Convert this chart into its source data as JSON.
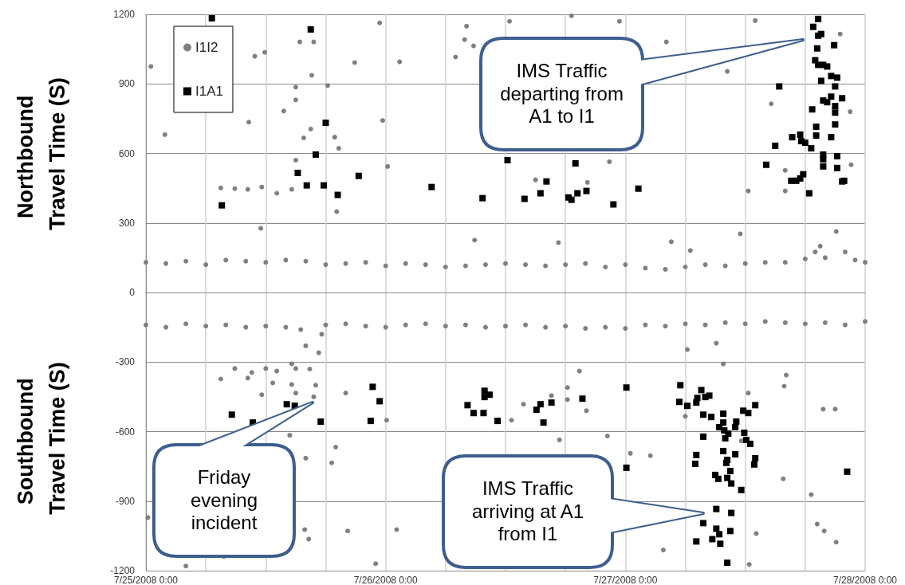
{
  "chart_data": {
    "type": "scatter",
    "ylabel": "Northbound Travel Time (S)",
    "annotations": [
      "Southbound Travel Time (S)",
      "IMS Traffic departing from A1 to I1",
      "Friday evening incident",
      "IMS Traffic arriving at A1 from I1"
    ],
    "xlim": [
      "2008-07-25T00:00",
      "2008-07-28T00:00"
    ],
    "xticks": [
      {
        "value": "2008-07-25T00:00",
        "label": "7/25/2008 0:00"
      },
      {
        "value": "2008-07-25T06:00",
        "label": null
      },
      {
        "value": "2008-07-25T12:00",
        "label": null
      },
      {
        "value": "2008-07-25T18:00",
        "label": null
      },
      {
        "value": "2008-07-26T00:00",
        "label": "7/26/2008 0:00"
      },
      {
        "value": "2008-07-26T06:00",
        "label": null
      },
      {
        "value": "2008-07-26T12:00",
        "label": null
      },
      {
        "value": "2008-07-26T18:00",
        "label": null
      },
      {
        "value": "2008-07-27T00:00",
        "label": "7/27/2008 0:00"
      },
      {
        "value": "2008-07-27T06:00",
        "label": null
      },
      {
        "value": "2008-07-27T12:00",
        "label": null
      },
      {
        "value": "2008-07-27T18:00",
        "label": null
      },
      {
        "value": "2008-07-28T00:00",
        "label": "7/28/2008 0:00"
      }
    ],
    "ylim": [
      -1200,
      1200
    ],
    "yticks": [
      -1200,
      -900,
      -600,
      -300,
      0,
      300,
      600,
      900,
      1200
    ],
    "grid": true,
    "legend": "top left",
    "series": [
      {
        "name": "I1I2",
        "color": "#808080",
        "marker": "circle",
        "x": [
          "2008-07-25T00:00",
          "2008-07-25T02:00",
          "2008-07-25T04:00",
          "2008-07-25T06:00",
          "2008-07-25T08:00",
          "2008-07-25T10:00",
          "2008-07-25T12:00",
          "2008-07-25T14:00",
          "2008-07-25T16:00",
          "2008-07-25T18:00",
          "2008-07-25T20:00",
          "2008-07-25T22:00",
          "2008-07-26T00:00",
          "2008-07-26T02:00",
          "2008-07-26T04:00",
          "2008-07-26T06:00",
          "2008-07-26T08:00",
          "2008-07-26T10:00",
          "2008-07-26T12:00",
          "2008-07-26T14:00",
          "2008-07-26T16:00",
          "2008-07-26T18:00",
          "2008-07-26T20:00",
          "2008-07-26T22:00",
          "2008-07-27T00:00",
          "2008-07-27T02:00",
          "2008-07-27T04:00",
          "2008-07-27T06:00",
          "2008-07-27T08:00",
          "2008-07-27T10:00",
          "2008-07-27T12:00",
          "2008-07-27T14:00",
          "2008-07-27T16:00",
          "2008-07-27T18:00",
          "2008-07-27T19:00",
          "2008-07-27T19:30",
          "2008-07-27T20:00",
          "2008-07-27T22:00",
          "2008-07-27T23:00",
          "2008-07-28T00:00",
          "2008-07-25T00:00",
          "2008-07-25T02:00",
          "2008-07-25T04:00",
          "2008-07-25T06:00",
          "2008-07-25T08:00",
          "2008-07-25T10:00",
          "2008-07-25T12:00",
          "2008-07-25T14:00",
          "2008-07-25T15:30",
          "2008-07-25T16:00",
          "2008-07-25T16:24",
          "2008-07-25T16:48",
          "2008-07-25T17:00",
          "2008-07-25T17:18",
          "2008-07-25T17:36",
          "2008-07-25T18:00",
          "2008-07-25T20:00",
          "2008-07-25T22:00",
          "2008-07-26T00:00",
          "2008-07-26T02:00",
          "2008-07-26T04:00",
          "2008-07-26T06:00",
          "2008-07-26T08:00",
          "2008-07-26T10:00",
          "2008-07-26T12:00",
          "2008-07-26T14:00",
          "2008-07-26T16:00",
          "2008-07-26T18:00",
          "2008-07-26T20:00",
          "2008-07-26T22:00",
          "2008-07-27T00:00",
          "2008-07-27T02:00",
          "2008-07-27T04:00",
          "2008-07-27T06:00",
          "2008-07-27T08:00",
          "2008-07-27T10:00",
          "2008-07-27T12:00",
          "2008-07-27T14:00",
          "2008-07-27T16:00",
          "2008-07-27T18:00",
          "2008-07-27T20:00",
          "2008-07-27T22:00",
          "2008-07-28T00:00",
          "2008-07-25T00:30",
          "2008-07-25T01:54",
          "2008-07-25T07:30",
          "2008-07-25T08:54",
          "2008-07-25T10:12",
          "2008-07-25T10:18",
          "2008-07-25T10:54",
          "2008-07-25T11:36",
          "2008-07-25T11:54",
          "2008-07-25T11:30",
          "2008-07-25T13:06",
          "2008-07-25T13:48",
          "2008-07-25T14:36",
          "2008-07-25T15:00",
          "2008-07-25T15:00",
          "2008-07-25T15:24",
          "2008-07-25T16:48",
          "2008-07-25T16:36",
          "2008-07-25T16:30",
          "2008-07-25T15:48",
          "2008-07-25T15:00",
          "2008-07-25T18:12",
          "2008-07-25T18:54",
          "2008-07-25T19:18",
          "2008-07-25T19:06",
          "2008-07-25T20:54",
          "2008-07-25T23:24",
          "2008-07-25T23:42",
          "2008-07-26T00:12",
          "2008-07-26T01:24",
          "2008-07-26T07:00",
          "2008-07-26T07:54",
          "2008-07-26T08:06",
          "2008-07-26T08:48",
          "2008-07-26T08:54",
          "2008-07-26T12:24",
          "2008-07-26T18:36",
          "2008-07-26T23:24",
          "2008-07-27T04:06",
          "2008-07-27T10:12",
          "2008-07-27T13:00",
          "2008-07-27T21:30",
          "2008-07-27T22:30",
          "2008-07-27T22:36",
          "2008-07-26T22:24",
          "2008-07-26T15:00",
          "2008-07-26T20:12",
          "2008-07-27T14:36",
          "2008-07-27T16:00",
          "2008-07-27T16:00",
          "2008-07-27T12:18",
          "2008-07-27T11:30",
          "2008-07-27T06:30",
          "2008-07-27T04:36",
          "2008-07-26T17:18",
          "2008-07-27T21:06",
          "2008-07-25T08:54",
          "2008-07-25T07:30",
          "2008-07-25T10:12",
          "2008-07-25T10:36",
          "2008-07-25T11:36",
          "2008-07-25T12:00",
          "2008-07-25T13:06",
          "2008-07-25T12:42",
          "2008-07-25T14:36",
          "2008-07-25T15:00",
          "2008-07-25T14:36",
          "2008-07-25T15:00",
          "2008-07-25T14:24",
          "2008-07-25T16:00",
          "2008-07-25T19:00",
          "2008-07-25T18:36",
          "2008-07-25T20:00",
          "2008-07-26T00:06",
          "2008-07-25T00:12",
          "2008-07-25T15:54",
          "2008-07-25T16:18",
          "2008-07-25T20:12",
          "2008-07-26T01:06",
          "2008-07-25T07:48",
          "2008-07-25T04:00",
          "2008-07-25T23:00",
          "2008-07-27T06:12",
          "2008-07-27T09:48",
          "2008-07-27T09:06",
          "2008-07-26T19:24",
          "2008-07-26T18:12",
          "2008-07-26T18:12",
          "2008-07-26T13:48",
          "2008-07-26T12:36",
          "2008-07-26T16:36",
          "2008-07-26T20:06",
          "2008-07-26T22:12",
          "2008-07-26T17:24",
          "2008-07-27T00:30",
          "2008-07-27T02:30",
          "2008-07-27T06:00",
          "2008-07-27T12:18",
          "2008-07-27T11:36",
          "2008-07-27T16:06",
          "2008-07-27T15:54",
          "2008-07-27T19:48",
          "2008-07-27T21:00",
          "2008-07-27T15:48",
          "2008-07-27T18:36",
          "2008-07-27T19:12",
          "2008-07-27T19:54",
          "2008-07-27T21:06",
          "2008-07-27T13:06",
          "2008-07-27T12:24",
          "2008-07-27T03:48"
        ],
        "values": [
          130,
          125,
          135,
          120,
          140,
          135,
          130,
          140,
          135,
          120,
          125,
          130,
          115,
          125,
          120,
          110,
          115,
          120,
          125,
          120,
          115,
          120,
          125,
          110,
          120,
          105,
          100,
          110,
          120,
          115,
          125,
          130,
          130,
          145,
          175,
          200,
          150,
          175,
          140,
          130,
          -140,
          -150,
          -135,
          -145,
          -140,
          -150,
          -145,
          -150,
          -160,
          -230,
          -330,
          -450,
          -400,
          -260,
          -180,
          -140,
          -135,
          -145,
          -150,
          -140,
          -135,
          -145,
          -140,
          -150,
          -145,
          -140,
          -150,
          -145,
          -155,
          -150,
          -155,
          -140,
          -145,
          -135,
          -140,
          -130,
          -135,
          -125,
          -130,
          -135,
          -130,
          -140,
          -125,
          975,
          681,
          451,
          448,
          445,
          735,
          1019,
          455,
          1036,
          277,
          428,
          783,
          445,
          886,
          831,
          1081,
          1081,
          937,
          705,
          667,
          571,
          893,
          670,
          622,
          349,
          992,
          1163,
          742,
          544,
          995,
          1016,
          1091,
          1149,
          1064,
          226,
          1170,
          1194,
          1170,
          1081,
          954,
          1173,
          1115,
          780,
          551,
          564,
          486,
          475,
          814,
          527,
          438,
          438,
          253,
          181,
          219,
          215,
          263,
          -328,
          -373,
          -369,
          -345,
          -441,
          -328,
          -339,
          -390,
          -308,
          -328,
          -397,
          -434,
          -616,
          -715,
          -667,
          -735,
          -434,
          -551,
          -971,
          -1023,
          -1064,
          -1029,
          -1023,
          -1139,
          -1180,
          -1170,
          -246,
          -308,
          -219,
          -339,
          -410,
          -462,
          -482,
          -551,
          -445,
          -510,
          -619,
          -636,
          -694,
          -704,
          -534,
          -434,
          -640,
          -356,
          -404,
          -503,
          -503,
          -804,
          -872,
          -999,
          -1029,
          -1077,
          -1040,
          -1173,
          -1111
        ]
      },
      {
        "name": "I1A1",
        "color": "#000000",
        "marker": "square",
        "x": [
          "2008-07-25T06:36",
          "2008-07-25T07:36",
          "2008-07-25T16:30",
          "2008-07-25T15:12",
          "2008-07-25T16:06",
          "2008-07-25T17:00",
          "2008-07-25T18:00",
          "2008-07-25T17:48",
          "2008-07-25T19:12",
          "2008-07-25T21:18",
          "2008-07-26T04:36",
          "2008-07-26T09:42",
          "2008-07-26T12:12",
          "2008-07-26T13:54",
          "2008-07-26T15:30",
          "2008-07-26T16:06",
          "2008-07-26T18:18",
          "2008-07-26T18:36",
          "2008-07-26T19:00",
          "2008-07-26T19:12",
          "2008-07-26T20:06",
          "2008-07-26T22:48",
          "2008-07-27T01:18",
          "2008-07-27T15:24",
          "2008-07-27T14:06",
          "2008-07-27T15:00",
          "2008-07-27T16:42",
          "2008-07-27T17:30",
          "2008-07-27T17:36",
          "2008-07-27T18:00",
          "2008-07-27T18:36",
          "2008-07-27T16:36",
          "2008-07-27T17:06",
          "2008-07-27T17:30",
          "2008-07-27T17:48",
          "2008-07-27T18:24",
          "2008-07-27T19:18",
          "2008-07-27T18:48",
          "2008-07-27T19:18",
          "2008-07-27T19:36",
          "2008-07-27T20:54",
          "2008-07-27T19:12",
          "2008-07-27T19:00",
          "2008-07-27T19:18",
          "2008-07-27T19:48",
          "2008-07-27T20:12",
          "2008-07-27T20:36",
          "2008-07-27T21:12",
          "2008-07-27T19:36",
          "2008-07-27T21:00",
          "2008-07-27T19:48",
          "2008-07-27T20:12",
          "2008-07-27T20:36",
          "2008-07-27T21:00",
          "2008-07-27T21:42",
          "2008-07-27T21:00",
          "2008-07-27T18:42",
          "2008-07-27T19:06",
          "2008-07-27T21:00",
          "2008-07-27T19:06",
          "2008-07-27T20:36",
          "2008-07-27T19:48",
          "2008-07-27T19:48",
          "2008-07-27T19:48",
          "2008-07-27T21:12",
          "2008-07-27T21:12",
          "2008-07-27T21:42",
          "2008-07-27T21:54",
          "2008-07-25T08:36",
          "2008-07-25T10:42",
          "2008-07-25T14:06",
          "2008-07-25T14:54",
          "2008-07-25T17:30",
          "2008-07-25T22:30",
          "2008-07-25T22:42",
          "2008-07-25T23:24",
          "2008-07-26T08:12",
          "2008-07-26T08:48",
          "2008-07-26T09:48",
          "2008-07-26T09:54",
          "2008-07-26T10:24",
          "2008-07-26T09:54",
          "2008-07-26T11:12",
          "2008-07-26T15:06",
          "2008-07-26T15:30",
          "2008-07-26T16:36",
          "2008-07-26T15:48",
          "2008-07-26T19:42",
          "2008-07-27T00:06",
          "2008-07-27T00:06",
          "2008-07-27T05:30",
          "2008-07-27T05:24",
          "2008-07-27T06:12",
          "2008-07-27T07:06",
          "2008-07-27T07:12",
          "2008-07-27T07:36",
          "2008-07-27T08:00",
          "2008-07-27T08:24",
          "2008-07-27T07:48",
          "2008-07-27T08:36",
          "2008-07-27T09:48",
          "2008-07-27T09:48",
          "2008-07-27T09:24",
          "2008-07-27T09:54",
          "2008-07-27T10:18",
          "2008-07-27T10:00",
          "2008-07-27T11:06",
          "2008-07-27T11:00",
          "2008-07-27T11:48",
          "2008-07-27T12:18",
          "2008-07-27T13:00",
          "2008-07-27T11:54",
          "2008-07-27T12:06",
          "2008-07-27T12:30",
          "2008-07-27T07:48",
          "2008-07-27T09:48",
          "2008-07-27T11:00",
          "2008-07-27T07:06",
          "2008-07-27T07:00",
          "2008-07-27T10:12",
          "2008-07-27T10:06",
          "2008-07-27T13:00",
          "2008-07-27T12:54",
          "2008-07-27T10:30",
          "2008-07-27T09:00",
          "2008-07-27T09:18",
          "2008-07-27T10:12",
          "2008-07-27T10:36",
          "2008-07-27T11:36",
          "2008-07-27T22:12",
          "2008-07-27T09:06",
          "2008-07-27T10:36",
          "2008-07-27T07:48",
          "2008-07-27T09:06",
          "2008-07-27T09:24",
          "2008-07-27T10:30",
          "2008-07-27T07:06",
          "2008-07-27T08:42",
          "2008-07-27T09:30",
          "2008-07-27T10:12"
        ],
        "values": [
          1183,
          376,
          1135,
          516,
          462,
          595,
          732,
          462,
          421,
          503,
          455,
          407,
          571,
          404,
          428,
          479,
          410,
          400,
          557,
          428,
          438,
          380,
          448,
          889,
          551,
          633,
          670,
          681,
          653,
          646,
          622,
          482,
          482,
          492,
          510,
          428,
          1180,
          1146,
          1108,
          1115,
          1067,
          1053,
          1002,
          982,
          982,
          975,
          934,
          927,
          913,
          889,
          828,
          821,
          845,
          804,
          838,
          776,
          790,
          715,
          725,
          677,
          670,
          595,
          575,
          544,
          588,
          537,
          479,
          482,
          -527,
          -561,
          -482,
          -489,
          -557,
          -554,
          -407,
          -469,
          -486,
          -520,
          -520,
          -424,
          -441,
          -451,
          -554,
          -506,
          -482,
          -475,
          -561,
          -458,
          -410,
          -756,
          -400,
          -472,
          -489,
          -475,
          -455,
          -421,
          -451,
          -445,
          -527,
          -537,
          -523,
          -561,
          -581,
          -595,
          -609,
          -629,
          -557,
          -581,
          -510,
          -520,
          -486,
          -605,
          -636,
          -653,
          -622,
          -684,
          -698,
          -701,
          -739,
          -722,
          -735,
          -715,
          -742,
          -770,
          -787,
          -804,
          -800,
          -824,
          -852,
          -773,
          -934,
          -951,
          -995,
          -1019,
          -1043,
          -1029,
          -1074,
          -1064,
          -1084,
          -1166
        ]
      }
    ]
  }
}
